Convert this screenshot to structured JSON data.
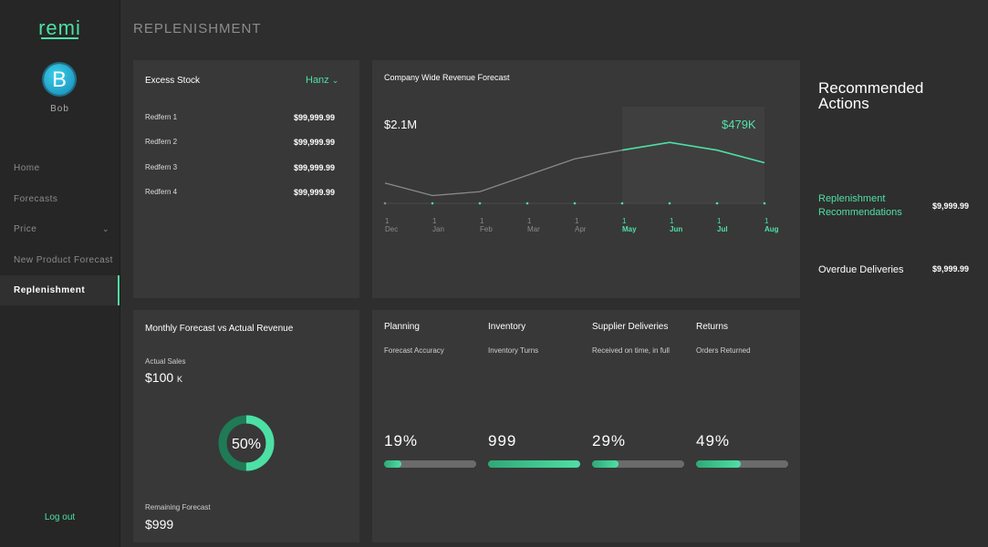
{
  "brand": "remi",
  "user": {
    "initial": "B",
    "name": "Bob"
  },
  "nav": [
    {
      "label": "Home"
    },
    {
      "label": "Forecasts"
    },
    {
      "label": "Price",
      "expandable": true
    },
    {
      "label": "New Product Forecast"
    },
    {
      "label": "Replenishment",
      "active": true
    }
  ],
  "logout": "Log out",
  "page_title": "REPLENISHMENT",
  "excess_stock": {
    "title": "Excess Stock",
    "filter": "Hanz",
    "rows": [
      {
        "name": "Redfern 1",
        "value": "$99,999.99"
      },
      {
        "name": "Redfern 2",
        "value": "$99,999.99"
      },
      {
        "name": "Redfern 3",
        "value": "$99,999.99"
      },
      {
        "name": "Redfern 4",
        "value": "$99,999.99"
      }
    ]
  },
  "revenue_forecast": {
    "title": "Company Wide Revenue Forecast",
    "actual_label": "$2.1M",
    "forecast_label": "$479K",
    "chart_data": {
      "type": "line",
      "categories": [
        {
          "day": "1",
          "month": "Dec"
        },
        {
          "day": "1",
          "month": "Jan"
        },
        {
          "day": "1",
          "month": "Feb"
        },
        {
          "day": "1",
          "month": "Mar"
        },
        {
          "day": "1",
          "month": "Apr"
        },
        {
          "day": "1",
          "month": "May"
        },
        {
          "day": "1",
          "month": "Jun"
        },
        {
          "day": "1",
          "month": "Jul"
        },
        {
          "day": "1",
          "month": "Aug"
        }
      ],
      "series": [
        {
          "color": "#8a8a8a",
          "values": [
            21,
            8,
            12,
            29,
            46,
            55,
            null,
            null,
            null
          ]
        },
        {
          "color": "#4de0a5",
          "values": [
            null,
            null,
            null,
            null,
            null,
            55,
            63,
            55,
            42
          ]
        }
      ],
      "ylim": [
        0,
        100
      ]
    }
  },
  "monthly": {
    "title": "Monthly Forecast vs Actual Revenue",
    "actual_label": "Actual Sales",
    "actual_value": "$100",
    "actual_unit": "K",
    "percent": {
      "value": 50,
      "label": "50%"
    },
    "remaining_label": "Remaining Forecast",
    "remaining_value": "$999"
  },
  "kpis": [
    {
      "title": "Planning",
      "subtitle": "Forecast Accuracy",
      "value": "19%",
      "progress": 19
    },
    {
      "title": "Inventory",
      "subtitle": "Inventory Turns",
      "value": "999",
      "progress": 100
    },
    {
      "title": "Supplier Deliveries",
      "subtitle": "Received on time, in full",
      "value": "29%",
      "progress": 29
    },
    {
      "title": "Returns",
      "subtitle": "Orders Returned",
      "value": "49%",
      "progress": 49
    }
  ],
  "recommended": {
    "title": "Recommended Actions",
    "items": [
      {
        "label": "Replenishment Recommendations",
        "value": "$9,999.99",
        "highlight": true
      },
      {
        "label": "Overdue Deliveries",
        "value": "$9,999.99"
      }
    ]
  }
}
